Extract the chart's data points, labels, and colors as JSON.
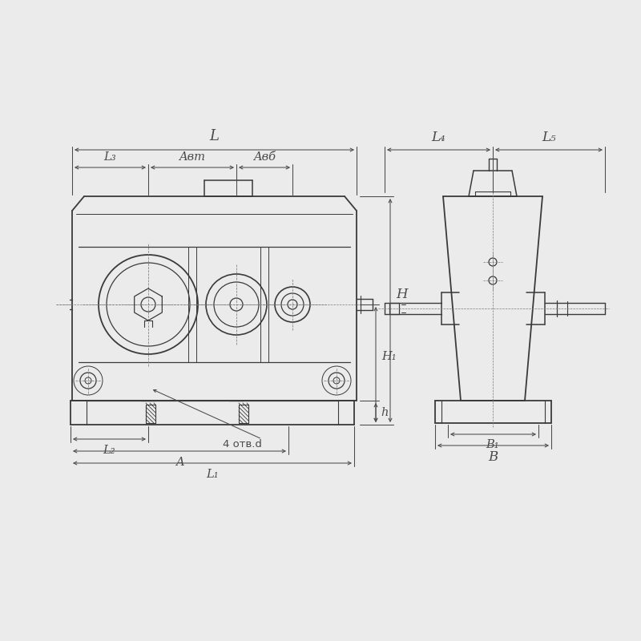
{
  "bg_color": "#ebebeb",
  "line_color": "#3a3a3a",
  "dim_color": "#4a4a4a",
  "thin_color": "#7a7a7a",
  "labels": {
    "L": "L",
    "L1": "L₁",
    "L2": "L₂",
    "L3": "L₃",
    "L4": "L₄",
    "L5": "L₅",
    "Awt": "Aвт",
    "Awb": "Aвб",
    "H": "H",
    "H1": "H₁",
    "h": "h",
    "A": "A",
    "B": "B",
    "B1": "B₁",
    "holes": "4 отв.d"
  }
}
